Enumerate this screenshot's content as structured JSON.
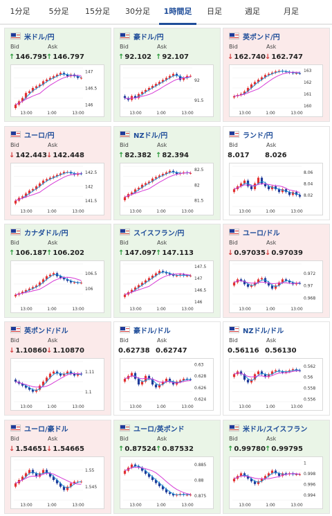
{
  "tabs": [
    {
      "label": "1分足"
    },
    {
      "label": "5分足"
    },
    {
      "label": "15分足"
    },
    {
      "label": "30分足"
    },
    {
      "label": "1時間足",
      "active": true
    },
    {
      "label": "日足"
    },
    {
      "label": "週足"
    },
    {
      "label": "月足"
    }
  ],
  "bid_label": "Bid",
  "ask_label": "Ask",
  "pairs": [
    {
      "name": "米ドル/円",
      "flag": "us-flag-icon",
      "trend": "up",
      "bid_dir": "up",
      "ask_dir": "up",
      "bid": "146.795",
      "ask": "146.797",
      "yticks": [
        "147",
        "146.5",
        "146"
      ],
      "xticks": [
        "13:00",
        "1:00",
        "13:00"
      ],
      "chart_data": {
        "type": "candlestick",
        "ylim": [
          145.9,
          147.1
        ],
        "x_ticks": [
          "13:00",
          "1:00",
          "13:00"
        ],
        "y_ticks": [
          147,
          146.5,
          146
        ],
        "series": [
          146.0,
          146.1,
          146.2,
          146.35,
          146.4,
          146.5,
          146.55,
          146.6,
          146.7,
          146.75,
          146.8,
          146.85,
          146.9,
          146.95,
          146.9,
          146.85,
          146.9,
          146.85,
          146.8,
          146.8
        ]
      }
    },
    {
      "name": "豪ドル/円",
      "flag": "au-flag-icon",
      "trend": "up",
      "bid_dir": "up",
      "ask_dir": "up",
      "bid": "92.102",
      "ask": "92.107",
      "yticks": [
        "92",
        "91.5"
      ],
      "xticks": [
        "13:00",
        "1:00",
        "13:00"
      ],
      "chart_data": {
        "type": "candlestick",
        "ylim": [
          91.3,
          92.3
        ],
        "x_ticks": [
          "13:00",
          "1:00",
          "13:00"
        ],
        "y_ticks": [
          92,
          91.5
        ],
        "series": [
          91.55,
          91.5,
          91.6,
          91.55,
          91.65,
          91.7,
          91.75,
          91.8,
          91.85,
          91.9,
          91.95,
          92.0,
          92.05,
          92.1,
          92.15,
          92.1,
          92.0,
          92.05,
          92.1,
          92.1
        ]
      }
    },
    {
      "name": "英ポンド/円",
      "flag": "gb-flag-icon",
      "trend": "down",
      "bid_dir": "down",
      "ask_dir": "down",
      "bid": "162.740",
      "ask": "162.747",
      "yticks": [
        "163",
        "162",
        "161",
        "160"
      ],
      "xticks": [
        "13:00",
        "1:00",
        "13:00"
      ],
      "chart_data": {
        "type": "candlestick",
        "ylim": [
          159.8,
          163.2
        ],
        "x_ticks": [
          "13:00",
          "1:00",
          "13:00"
        ],
        "y_ticks": [
          163,
          162,
          161,
          160
        ],
        "series": [
          160.8,
          160.9,
          161.0,
          161.2,
          161.5,
          161.8,
          162.0,
          162.2,
          162.4,
          162.6,
          162.7,
          162.8,
          162.9,
          162.95,
          162.9,
          162.85,
          162.8,
          162.75,
          162.75,
          162.74
        ]
      }
    },
    {
      "name": "ユーロ/円",
      "flag": "eu-flag-icon",
      "trend": "down",
      "bid_dir": "down",
      "ask_dir": "down",
      "bid": "142.443",
      "ask": "142.448",
      "yticks": [
        "142.5",
        "142",
        "141.5"
      ],
      "xticks": [
        "13:00",
        "1:00",
        "13:00"
      ],
      "chart_data": {
        "type": "candlestick",
        "ylim": [
          141.3,
          142.7
        ],
        "x_ticks": [
          "13:00",
          "1:00",
          "13:00"
        ],
        "y_ticks": [
          142.5,
          142,
          141.5
        ],
        "series": [
          141.5,
          141.6,
          141.65,
          141.75,
          141.85,
          141.9,
          142.0,
          142.1,
          142.2,
          142.25,
          142.3,
          142.35,
          142.4,
          142.45,
          142.5,
          142.5,
          142.45,
          142.4,
          142.45,
          142.44
        ]
      }
    },
    {
      "name": "NZドル/円",
      "flag": "nz-flag-icon",
      "trend": "up",
      "bid_dir": "up",
      "ask_dir": "up",
      "bid": "82.382",
      "ask": "82.394",
      "yticks": [
        "82.5",
        "82",
        "81.5"
      ],
      "xticks": [
        "13:00",
        "1:00",
        "13:00"
      ],
      "chart_data": {
        "type": "candlestick",
        "ylim": [
          81.3,
          82.6
        ],
        "x_ticks": [
          "13:00",
          "1:00",
          "13:00"
        ],
        "y_ticks": [
          82.5,
          82,
          81.5
        ],
        "series": [
          81.6,
          81.7,
          81.75,
          81.85,
          81.9,
          82.0,
          82.05,
          82.1,
          82.2,
          82.25,
          82.3,
          82.35,
          82.4,
          82.45,
          82.4,
          82.35,
          82.38,
          82.4,
          82.38,
          82.38
        ]
      }
    },
    {
      "name": "ランド/円",
      "flag": "za-flag-icon",
      "trend": "flat",
      "bid_dir": "none",
      "ask_dir": "none",
      "bid": "8.017",
      "ask": "8.026",
      "yticks": [
        "8.06",
        "8.04",
        "8.02"
      ],
      "xticks": [
        "13:00",
        "1:00",
        "13:00"
      ],
      "chart_data": {
        "type": "candlestick",
        "ylim": [
          8.0,
          8.07
        ],
        "x_ticks": [
          "13:00",
          "1:00",
          "13:00"
        ],
        "y_ticks": [
          8.06,
          8.04,
          8.02
        ],
        "series": [
          8.03,
          8.035,
          8.04,
          8.045,
          8.035,
          8.03,
          8.04,
          8.05,
          8.04,
          8.035,
          8.03,
          8.035,
          8.03,
          8.025,
          8.03,
          8.025,
          8.02,
          8.025,
          8.02,
          8.017
        ]
      }
    },
    {
      "name": "カナダドル/円",
      "flag": "ca-flag-icon",
      "trend": "up",
      "bid_dir": "up",
      "ask_dir": "up",
      "bid": "106.187",
      "ask": "106.202",
      "yticks": [
        "106.5",
        "106"
      ],
      "xticks": [
        "13:00",
        "1:00",
        "13:00"
      ],
      "chart_data": {
        "type": "candlestick",
        "ylim": [
          105.5,
          106.8
        ],
        "x_ticks": [
          "13:00",
          "1:00",
          "13:00"
        ],
        "y_ticks": [
          106.5,
          106
        ],
        "series": [
          105.8,
          105.85,
          105.9,
          105.95,
          106.0,
          106.05,
          106.1,
          106.2,
          106.3,
          106.4,
          106.45,
          106.5,
          106.4,
          106.35,
          106.3,
          106.25,
          106.2,
          106.2,
          106.19,
          106.19
        ]
      }
    },
    {
      "name": "スイスフラン/円",
      "flag": "ch-flag-icon",
      "trend": "up",
      "bid_dir": "up",
      "ask_dir": "up",
      "bid": "147.097",
      "ask": "147.113",
      "yticks": [
        "147.5",
        "147",
        "146.5",
        "146"
      ],
      "xticks": [
        "13:00",
        "1:00",
        "13:00"
      ],
      "chart_data": {
        "type": "candlestick",
        "ylim": [
          145.9,
          147.6
        ],
        "x_ticks": [
          "13:00",
          "1:00",
          "13:00"
        ],
        "y_ticks": [
          147.5,
          147,
          146.5,
          146
        ],
        "series": [
          146.3,
          146.4,
          146.5,
          146.6,
          146.7,
          146.8,
          146.9,
          147.0,
          147.1,
          147.2,
          147.3,
          147.25,
          147.2,
          147.15,
          147.1,
          147.1,
          147.15,
          147.1,
          147.1,
          147.1
        ]
      }
    },
    {
      "name": "ユーロ/ドル",
      "flag": "eu-us-flag-icon",
      "trend": "down",
      "bid_dir": "down",
      "ask_dir": "down",
      "bid": "0.97035",
      "ask": "0.97039",
      "yticks": [
        "0.972",
        "0.97",
        "0.968"
      ],
      "xticks": [
        "13:00",
        "1:00",
        "13:00"
      ],
      "chart_data": {
        "type": "candlestick",
        "ylim": [
          0.967,
          0.9735
        ],
        "x_ticks": [
          "13:00",
          "1:00",
          "13:00"
        ],
        "y_ticks": [
          0.972,
          0.97,
          0.968
        ],
        "series": [
          0.9705,
          0.971,
          0.9708,
          0.9702,
          0.9698,
          0.97,
          0.9705,
          0.971,
          0.9712,
          0.9705,
          0.97,
          0.9695,
          0.97,
          0.9705,
          0.971,
          0.9708,
          0.9705,
          0.9702,
          0.9704,
          0.97035
        ]
      }
    },
    {
      "name": "英ポンド/ドル",
      "flag": "gb-us-flag-icon",
      "trend": "down",
      "bid_dir": "down",
      "ask_dir": "down",
      "bid": "1.10860",
      "ask": "1.10870",
      "yticks": [
        "1.11",
        "1.1"
      ],
      "xticks": [
        "13:00",
        "1:00",
        "13:00"
      ],
      "chart_data": {
        "type": "candlestick",
        "ylim": [
          1.095,
          1.115
        ],
        "x_ticks": [
          "13:00",
          "1:00",
          "13:00"
        ],
        "y_ticks": [
          1.11,
          1.1
        ],
        "series": [
          1.105,
          1.104,
          1.103,
          1.102,
          1.101,
          1.1,
          1.101,
          1.103,
          1.105,
          1.107,
          1.109,
          1.11,
          1.109,
          1.108,
          1.109,
          1.11,
          1.109,
          1.108,
          1.109,
          1.1086
        ]
      }
    },
    {
      "name": "豪ドル/ドル",
      "flag": "au-us-flag-icon",
      "trend": "flat",
      "bid_dir": "none",
      "ask_dir": "none",
      "bid": "0.62738",
      "ask": "0.62747",
      "yticks": [
        "0.63",
        "0.628",
        "0.626",
        "0.624"
      ],
      "xticks": [
        "13:00",
        "1:00",
        "13:00"
      ],
      "chart_data": {
        "type": "candlestick",
        "ylim": [
          0.6235,
          0.6305
        ],
        "x_ticks": [
          "13:00",
          "1:00",
          "13:00"
        ],
        "y_ticks": [
          0.63,
          0.628,
          0.626,
          0.624
        ],
        "series": [
          0.6275,
          0.628,
          0.6285,
          0.6275,
          0.6265,
          0.627,
          0.628,
          0.6275,
          0.6265,
          0.626,
          0.6265,
          0.627,
          0.6275,
          0.627,
          0.6265,
          0.627,
          0.6272,
          0.6275,
          0.6274,
          0.62738
        ]
      }
    },
    {
      "name": "NZドル/ドル",
      "flag": "nz-us-flag-icon",
      "trend": "flat",
      "bid_dir": "none",
      "ask_dir": "none",
      "bid": "0.56116",
      "ask": "0.56130",
      "yticks": [
        "0.562",
        "0.56",
        "0.558",
        "0.556"
      ],
      "xticks": [
        "13:00",
        "1:00",
        "13:00"
      ],
      "chart_data": {
        "type": "candlestick",
        "ylim": [
          0.5555,
          0.5628
        ],
        "x_ticks": [
          "13:00",
          "1:00",
          "13:00"
        ],
        "y_ticks": [
          0.562,
          0.56,
          0.558,
          0.556
        ],
        "series": [
          0.5605,
          0.561,
          0.5605,
          0.5595,
          0.559,
          0.5595,
          0.5605,
          0.561,
          0.5605,
          0.56,
          0.5605,
          0.561,
          0.5612,
          0.561,
          0.5608,
          0.561,
          0.5612,
          0.5614,
          0.5612,
          0.56116
        ]
      }
    },
    {
      "name": "ユーロ/豪ドル",
      "flag": "eu-au-flag-icon",
      "trend": "down",
      "bid_dir": "down",
      "ask_dir": "down",
      "bid": "1.54651",
      "ask": "1.54665",
      "yticks": [
        "1.55",
        "1.545"
      ],
      "xticks": [
        "13:00",
        "1:00",
        "13:00"
      ],
      "chart_data": {
        "type": "candlestick",
        "ylim": [
          1.541,
          1.553
        ],
        "x_ticks": [
          "13:00",
          "1:00",
          "13:00"
        ],
        "y_ticks": [
          1.55,
          1.545
        ],
        "series": [
          1.546,
          1.547,
          1.548,
          1.549,
          1.55,
          1.549,
          1.548,
          1.549,
          1.55,
          1.549,
          1.548,
          1.547,
          1.546,
          1.545,
          1.544,
          1.545,
          1.546,
          1.5465,
          1.5465,
          1.54651
        ]
      }
    },
    {
      "name": "ユーロ/英ポンド",
      "flag": "eu-gb-flag-icon",
      "trend": "up",
      "bid_dir": "up",
      "ask_dir": "up",
      "bid": "0.87524",
      "ask": "0.87532",
      "yticks": [
        "0.885",
        "0.88",
        "0.875"
      ],
      "xticks": [
        "13:00",
        "1:00",
        "13:00"
      ],
      "chart_data": {
        "type": "candlestick",
        "ylim": [
          0.8735,
          0.8865
        ],
        "x_ticks": [
          "13:00",
          "1:00",
          "13:00"
        ],
        "y_ticks": [
          0.885,
          0.88,
          0.875
        ],
        "series": [
          0.883,
          0.884,
          0.885,
          0.8845,
          0.884,
          0.883,
          0.882,
          0.881,
          0.88,
          0.879,
          0.878,
          0.877,
          0.876,
          0.8755,
          0.875,
          0.8752,
          0.8755,
          0.8752,
          0.8752,
          0.87524
        ]
      }
    },
    {
      "name": "米ドル/スイスフラン",
      "flag": "us-ch-flag-icon",
      "trend": "up",
      "bid_dir": "up",
      "ask_dir": "up",
      "bid": "0.99780",
      "ask": "0.99795",
      "yticks": [
        "1",
        "0.998",
        "0.996",
        "0.994"
      ],
      "xticks": [
        "13:00",
        "1:00",
        "13:00"
      ],
      "chart_data": {
        "type": "candlestick",
        "ylim": [
          0.993,
          1.0005
        ],
        "x_ticks": [
          "13:00",
          "1:00",
          "13:00"
        ],
        "y_ticks": [
          1,
          0.998,
          0.996,
          0.994
        ],
        "series": [
          0.997,
          0.9975,
          0.998,
          0.9975,
          0.997,
          0.9965,
          0.996,
          0.9965,
          0.997,
          0.9975,
          0.998,
          0.9985,
          0.998,
          0.9975,
          0.998,
          0.9978,
          0.998,
          0.9978,
          0.9978,
          0.9978
        ]
      }
    }
  ],
  "colors": {
    "up": "#2a9a3a",
    "down": "#d23b3b",
    "candle_up": "#e23030",
    "candle_down": "#1f3a99",
    "ma_short": "#1b8fd6",
    "ma_long": "#d63ad6",
    "card_up": "#eaf5e7",
    "card_down": "#fbeaea",
    "tab_active": "#1f4d99"
  }
}
